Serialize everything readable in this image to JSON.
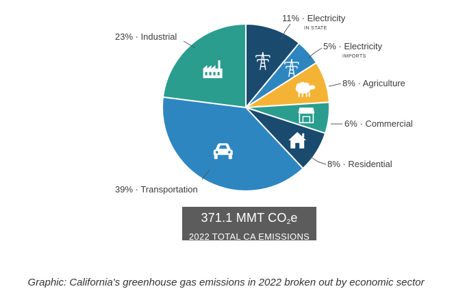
{
  "chart_data": {
    "type": "pie",
    "unit": "%",
    "slices": [
      {
        "label": "Electricity",
        "sublabel": "IN STATE",
        "value": 11,
        "color": "#1a4a6e",
        "icon": "power-tower-icon"
      },
      {
        "label": "Electricity",
        "sublabel": "IMPORTS",
        "value": 5,
        "color": "#2e86c1",
        "icon": "power-tower-icon"
      },
      {
        "label": "Agriculture",
        "sublabel": "",
        "value": 8,
        "color": "#f5b335",
        "icon": "sheep-icon"
      },
      {
        "label": "Commercial",
        "sublabel": "",
        "value": 6,
        "color": "#2a9d8f",
        "icon": "storefront-icon"
      },
      {
        "label": "Residential",
        "sublabel": "",
        "value": 8,
        "color": "#1a4a6e",
        "icon": "house-icon"
      },
      {
        "label": "Transportation",
        "sublabel": "",
        "value": 39,
        "color": "#2e86c1",
        "icon": "car-icon"
      },
      {
        "label": "Industrial",
        "sublabel": "",
        "value": 23,
        "color": "#2a9d8f",
        "icon": "factory-icon"
      }
    ],
    "total": {
      "value_prefix": "371.1 MMT CO",
      "value_subscript": "2",
      "value_suffix": "e",
      "label": "2022 TOTAL CA EMISSIONS"
    }
  },
  "caption": "Graphic: California's greenhouse gas emissions in 2022 broken out by economic sector"
}
